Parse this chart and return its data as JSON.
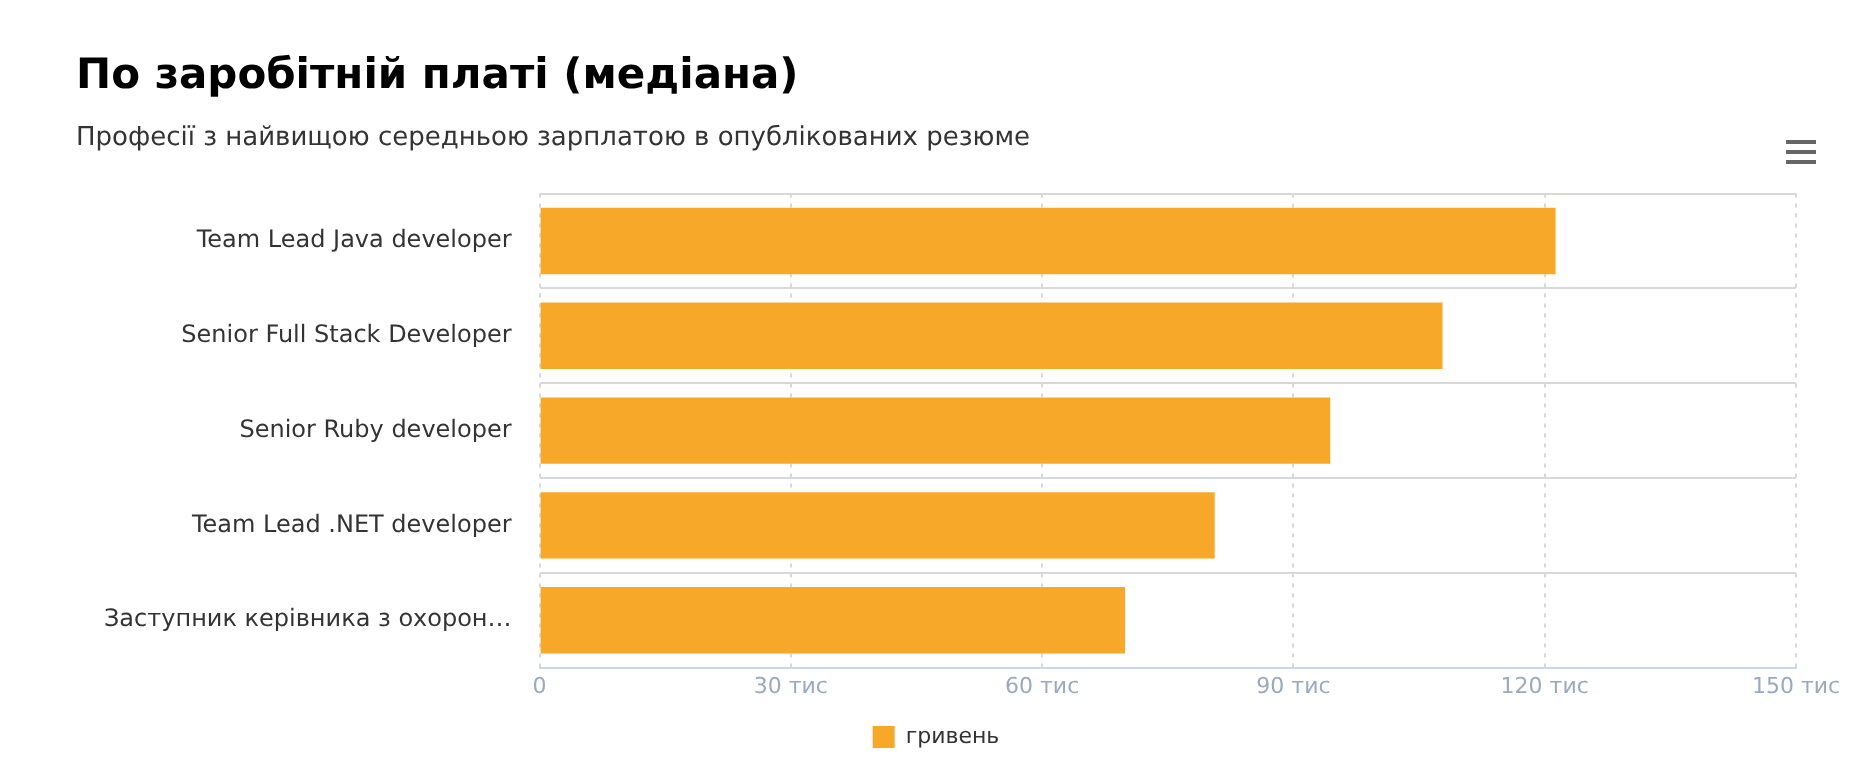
{
  "chart_data": {
    "type": "bar",
    "orientation": "horizontal",
    "title": "По заробітній платі (медіана)",
    "subtitle": "Професії з найвищою середньою зарплатою в опублікованих резюме",
    "categories": [
      "Team Lead Java developer",
      "Senior Full Stack Developer",
      "Senior Ruby developer",
      "Team Lead .NET developer",
      "Заступник керівника з охорон…"
    ],
    "series": [
      {
        "name": "гривень",
        "color": "#f8a828",
        "values": [
          121.3,
          107.8,
          94.4,
          80.6,
          69.9
        ]
      }
    ],
    "xlim": [
      0,
      150
    ],
    "xticks": [
      0,
      {
        "value": 30,
        "label": "30 тис"
      },
      {
        "value": 60,
        "label": "60 тис"
      },
      {
        "value": 90,
        "label": "90 тис"
      },
      {
        "value": 120,
        "label": "120 тис"
      },
      {
        "value": 150,
        "label": "150 тис"
      }
    ],
    "grid": true,
    "legend": "bottom"
  }
}
